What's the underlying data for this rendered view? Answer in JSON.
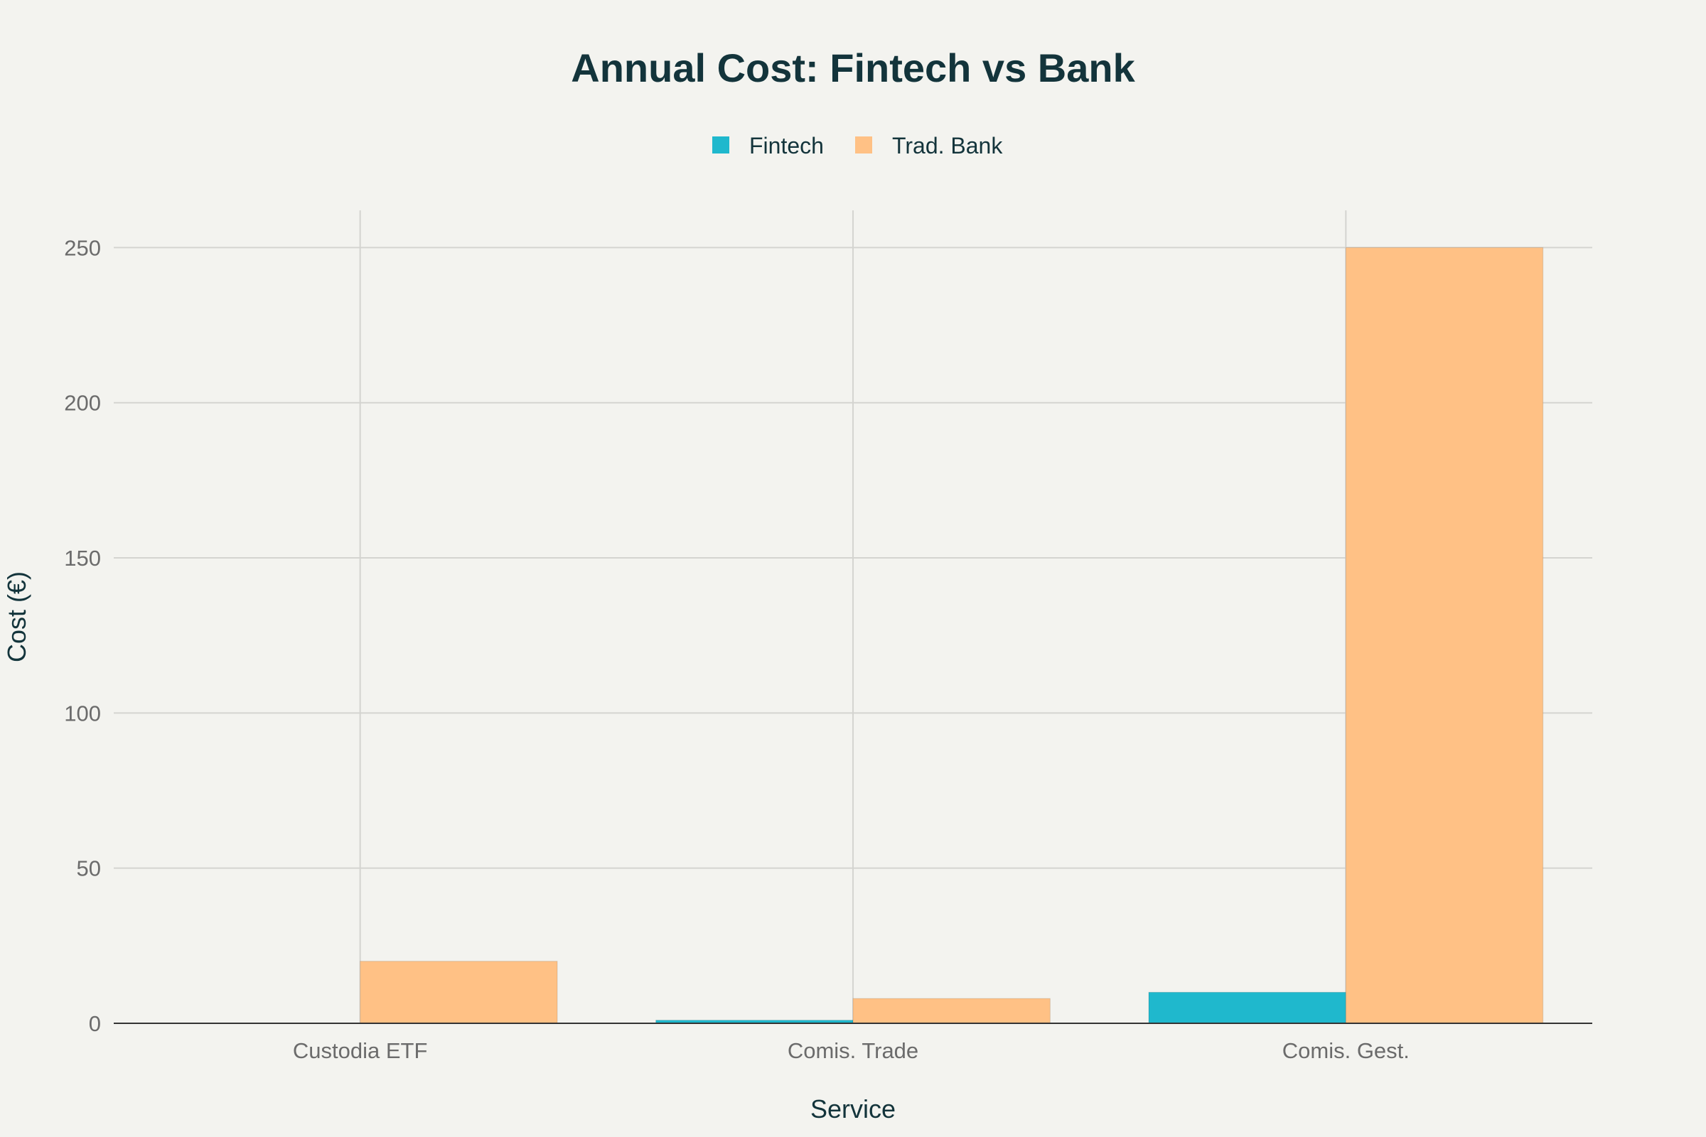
{
  "chart_data": {
    "type": "bar",
    "title": "Annual Cost: Fintech vs Bank",
    "xlabel": "Service",
    "ylabel": "Cost (€)",
    "categories": [
      "Custodia ETF",
      "Comis. Trade",
      "Comis. Gest."
    ],
    "series": [
      {
        "name": "Fintech",
        "values": [
          0,
          1,
          10
        ],
        "color": "#1fb8cd"
      },
      {
        "name": "Trad. Bank",
        "values": [
          20,
          8,
          250
        ],
        "color": "#ffc185"
      }
    ],
    "ylim": [
      0,
      262
    ],
    "yticks": [
      0,
      50,
      100,
      150,
      200,
      250
    ],
    "grid": true,
    "legend_position": "top-center"
  }
}
